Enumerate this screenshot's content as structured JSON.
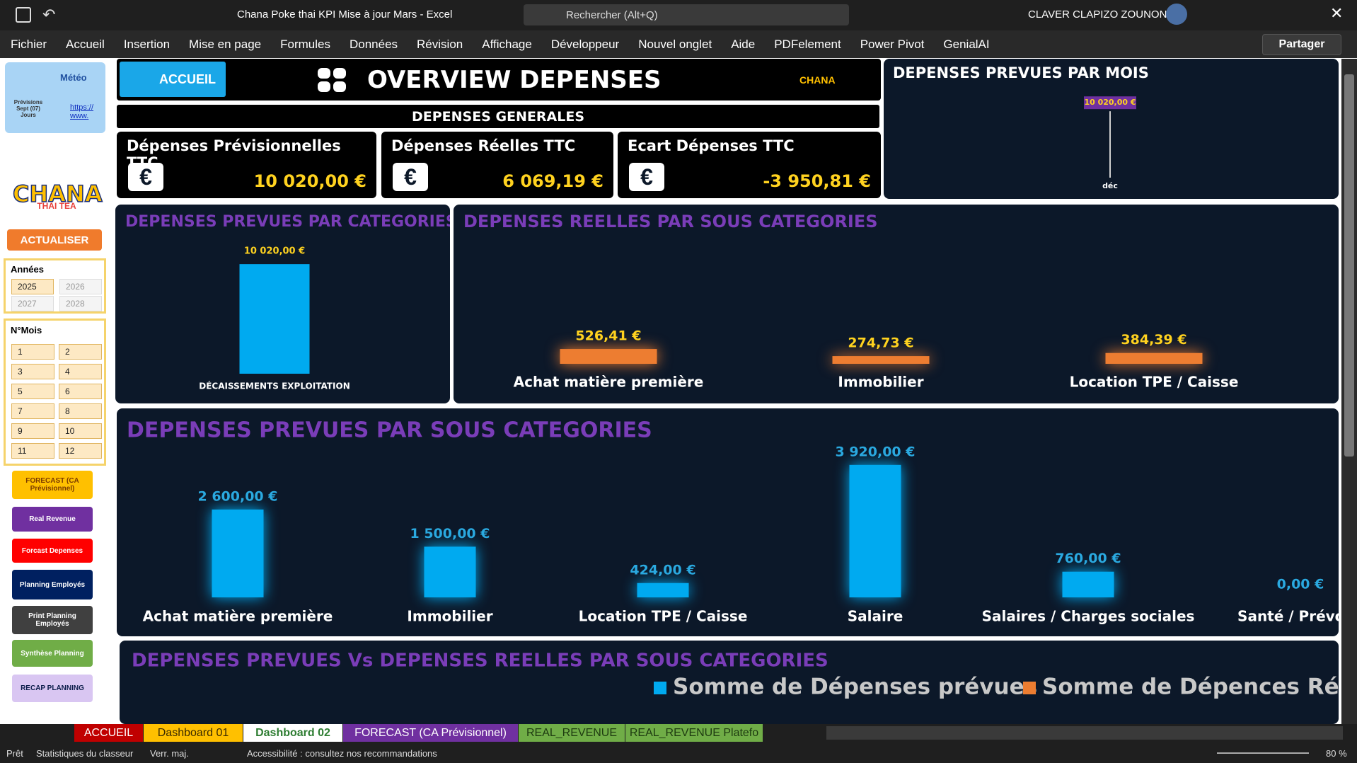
{
  "window": {
    "title": "Chana Poke thai KPI Mise à jour Mars  -  Excel",
    "search": "Rechercher (Alt+Q)",
    "user": "CLAVER CLAPIZO ZOUNON"
  },
  "menu": [
    "Fichier",
    "Accueil",
    "Insertion",
    "Mise en page",
    "Formules",
    "Données",
    "Révision",
    "Affichage",
    "Développeur",
    "Nouvel onglet",
    "Aide",
    "PDFelement",
    "Power Pivot",
    "GenialAI"
  ],
  "share": "Partager",
  "sidebar": {
    "weather": {
      "title": "Météo",
      "forecast": "Prévisions Sept (07) Jours",
      "link": "https://www."
    },
    "logo": {
      "name": "CHANA",
      "tagline": "THAI TEA"
    },
    "refresh": "ACTUALISER",
    "years": {
      "title": "Années",
      "items": [
        "2025",
        "2026",
        "2027",
        "2028"
      ]
    },
    "months": {
      "title": "N°Mois",
      "items": [
        "1",
        "2",
        "3",
        "4",
        "5",
        "6",
        "7",
        "8",
        "9",
        "10",
        "11",
        "12"
      ]
    },
    "buttons": [
      "FORECAST (CA Prévisionnel)",
      "Real Revenue",
      "Forcast Depenses",
      "Planning Employés",
      "Print Planning Employés",
      "Synthèse Planning",
      "RECAP PLANNING"
    ]
  },
  "header": {
    "home": "ACCUEIL",
    "title": "OVERVIEW DEPENSES",
    "section": "DEPENSES GENERALES"
  },
  "kpis": [
    {
      "label": "Dépenses Prévisionnelles TTC",
      "value": "10 020,00 €"
    },
    {
      "label": "Dépenses Réelles TTC",
      "value": "6 069,19 €"
    },
    {
      "label": "Ecart Dépenses TTC",
      "value": "-3 950,81 €"
    }
  ],
  "chart_data": [
    {
      "type": "bar",
      "title": "DEPENSES PREVUES PAR MOIS",
      "categories": [
        "déc"
      ],
      "values": [
        10020
      ],
      "value_labels": [
        "10 020,00 €"
      ],
      "ylim": [
        0,
        11000
      ],
      "color": "#d0d0d0"
    },
    {
      "type": "bar",
      "title": "DEPENSES PREVUES PAR CATEGORIES",
      "categories": [
        "DÉCAISSEMENTS EXPLOITATION"
      ],
      "values": [
        10020
      ],
      "value_labels": [
        "10 020,00 €"
      ],
      "ylim": [
        0,
        11000
      ],
      "color": "#00aaf0"
    },
    {
      "type": "bar",
      "title": "DEPENSES REELLES PAR SOUS CATEGORIES",
      "categories": [
        "Achat matière première",
        "Immobilier",
        "Location TPE / Caisse"
      ],
      "values": [
        526.41,
        274.73,
        384.39
      ],
      "value_labels": [
        "526,41 €",
        "274,73 €",
        "384,39 €"
      ],
      "ylim": [
        0,
        4600
      ],
      "color": "#ed7d31"
    },
    {
      "type": "bar",
      "title": "DEPENSES PREVUES PAR SOUS CATEGORIES",
      "categories": [
        "Achat matière première",
        "Immobilier",
        "Location TPE / Caisse",
        "Salaire",
        "Salaires / Charges sociales",
        "Santé / Prévoya"
      ],
      "values": [
        2600,
        1500,
        424,
        3920,
        760,
        0
      ],
      "value_labels": [
        "2 600,00 €",
        "1 500,00 €",
        "424,00 €",
        "3 920,00 €",
        "760,00 €",
        "0,00 €"
      ],
      "ylim": [
        0,
        4000
      ],
      "color": "#00aaf0"
    },
    {
      "type": "legend",
      "title": "DEPENSES PREVUES Vs DEPENSES REELLES  PAR SOUS CATEGORIES",
      "series": [
        {
          "name": "Somme de Dépenses prévues",
          "color": "#00aaf0"
        },
        {
          "name": "Somme de Dépences Réelles",
          "color": "#ed7d31"
        }
      ]
    }
  ],
  "sheet_tabs": [
    "ACCUEIL",
    "Dashboard  01",
    "Dashboard  02",
    "FORECAST (CA Prévisionnel)",
    "REAL_REVENUE",
    "REAL_REVENUE  Platefo"
  ],
  "status": [
    "Prêt",
    "Statistiques du classeur",
    "Verr. maj.",
    "Accessibilité : consultez nos recommandations"
  ],
  "zoom": "80 %"
}
